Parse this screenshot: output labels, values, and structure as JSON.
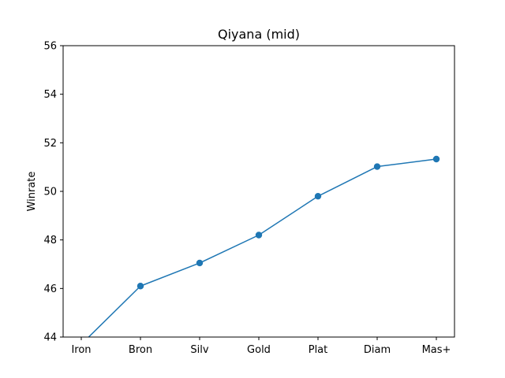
{
  "chart_data": {
    "type": "line",
    "title": "Qiyana (mid)",
    "xlabel": "",
    "ylabel": "Winrate",
    "categories": [
      "Iron",
      "Bron",
      "Silv",
      "Gold",
      "Plat",
      "Diam",
      "Mas+"
    ],
    "series": [
      {
        "values": [
          43.7,
          46.1,
          47.05,
          48.2,
          49.8,
          51.02,
          51.33
        ],
        "color": "#1f77b4",
        "marker": "circle"
      }
    ],
    "ylim": [
      44,
      56
    ],
    "yticks": [
      44,
      46,
      48,
      50,
      52,
      54,
      56
    ],
    "grid": false,
    "legend": "none"
  }
}
